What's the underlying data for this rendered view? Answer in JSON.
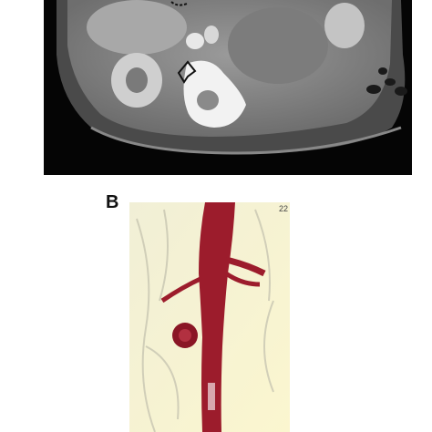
{
  "panels": [
    {
      "label": "B",
      "corner_text": "22"
    }
  ]
}
